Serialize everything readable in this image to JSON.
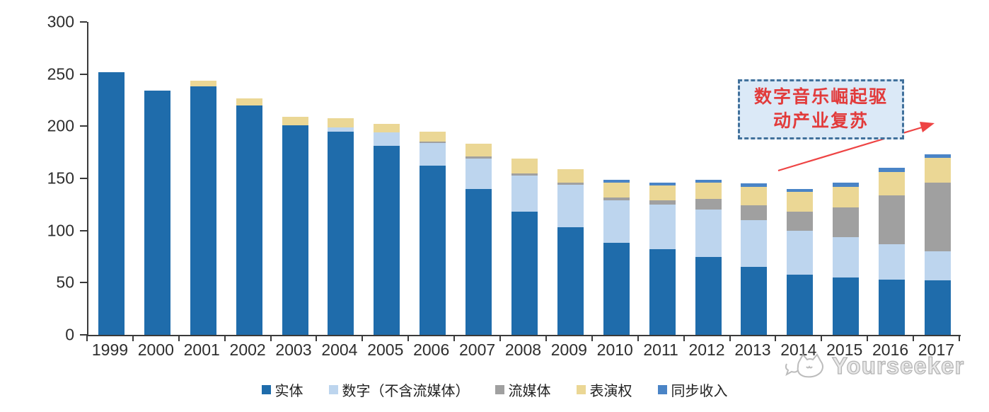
{
  "chart_data": {
    "type": "bar",
    "stacked": true,
    "title": "",
    "xlabel": "",
    "ylabel": "",
    "ylim": [
      0,
      300
    ],
    "yticks": [
      0,
      50,
      100,
      150,
      200,
      250,
      300
    ],
    "grid": false,
    "legend_position": "bottom",
    "categories": [
      "1999",
      "2000",
      "2001",
      "2002",
      "2003",
      "2004",
      "2005",
      "2006",
      "2007",
      "2008",
      "2009",
      "2010",
      "2011",
      "2012",
      "2013",
      "2014",
      "2015",
      "2016",
      "2017"
    ],
    "series": [
      {
        "name": "实体",
        "color": "#1f6cab",
        "values": [
          252,
          234,
          238,
          220,
          201,
          195,
          181,
          162,
          140,
          118,
          103,
          88,
          82,
          75,
          65,
          58,
          55,
          53,
          52
        ]
      },
      {
        "name": "数字（不含流媒体）",
        "color": "#bdd5ee",
        "values": [
          0,
          0,
          0,
          0,
          0,
          4,
          13,
          22,
          29,
          35,
          41,
          41,
          43,
          45,
          45,
          42,
          39,
          34,
          28
        ]
      },
      {
        "name": "流媒体",
        "color": "#a0a0a0",
        "values": [
          0,
          0,
          0,
          0,
          0,
          0,
          0,
          1,
          2,
          2,
          2,
          3,
          4,
          10,
          14,
          18,
          28,
          47,
          66
        ]
      },
      {
        "name": "表演权",
        "color": "#ebd795",
        "values": [
          0,
          0,
          6,
          7,
          8,
          9,
          8,
          10,
          12,
          14,
          13,
          14,
          14,
          16,
          18,
          19,
          20,
          22,
          24
        ]
      },
      {
        "name": "同步收入",
        "color": "#4a84c6",
        "values": [
          0,
          0,
          0,
          0,
          0,
          0,
          0,
          0,
          0,
          0,
          0,
          3,
          3,
          3,
          3,
          3,
          4,
          4,
          3
        ]
      }
    ]
  },
  "annotation": {
    "line1": "数字音乐崛起驱",
    "line2": "动产业复苏",
    "text_color": "#e23b3b",
    "box_fill": "#dbe9f7",
    "box_border": "#41719c",
    "arrow_color": "#ee4444"
  },
  "watermark": {
    "text": "Yourseeker",
    "color": "#b5b5b5"
  }
}
